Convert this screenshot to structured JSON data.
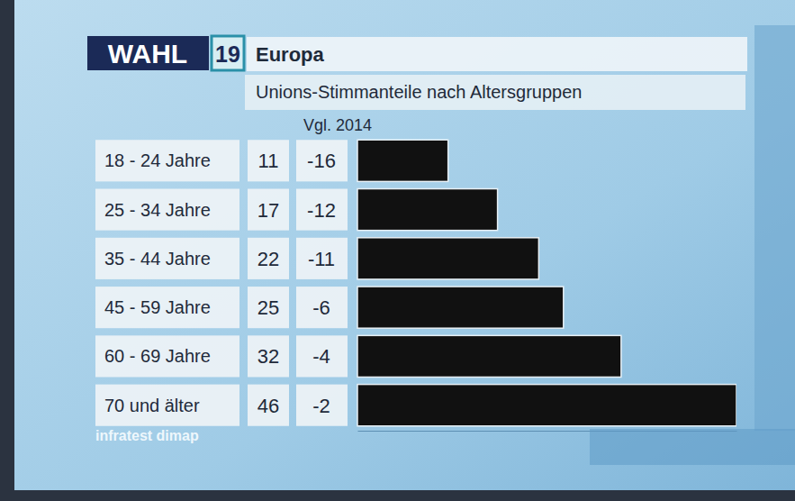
{
  "chart_data": {
    "type": "bar",
    "orientation": "horizontal",
    "brand": "WAHL",
    "brand_number": "19",
    "title": "Europa",
    "subtitle": "Unions-Stimmanteile nach Altersgruppen",
    "categories": [
      "18 - 24 Jahre",
      "25 - 34 Jahre",
      "35 - 44 Jahre",
      "45 - 59 Jahre",
      "60 - 69 Jahre",
      "70 und älter"
    ],
    "values": [
      11,
      17,
      22,
      25,
      32,
      46
    ],
    "change_label": "Vgl. 2014",
    "change": [
      -16,
      -12,
      -11,
      -6,
      -4,
      -2
    ],
    "color": "#111111",
    "xlim": [
      0,
      46
    ],
    "tick_labels": false,
    "data_labels": true,
    "source": "infratest dimap"
  }
}
